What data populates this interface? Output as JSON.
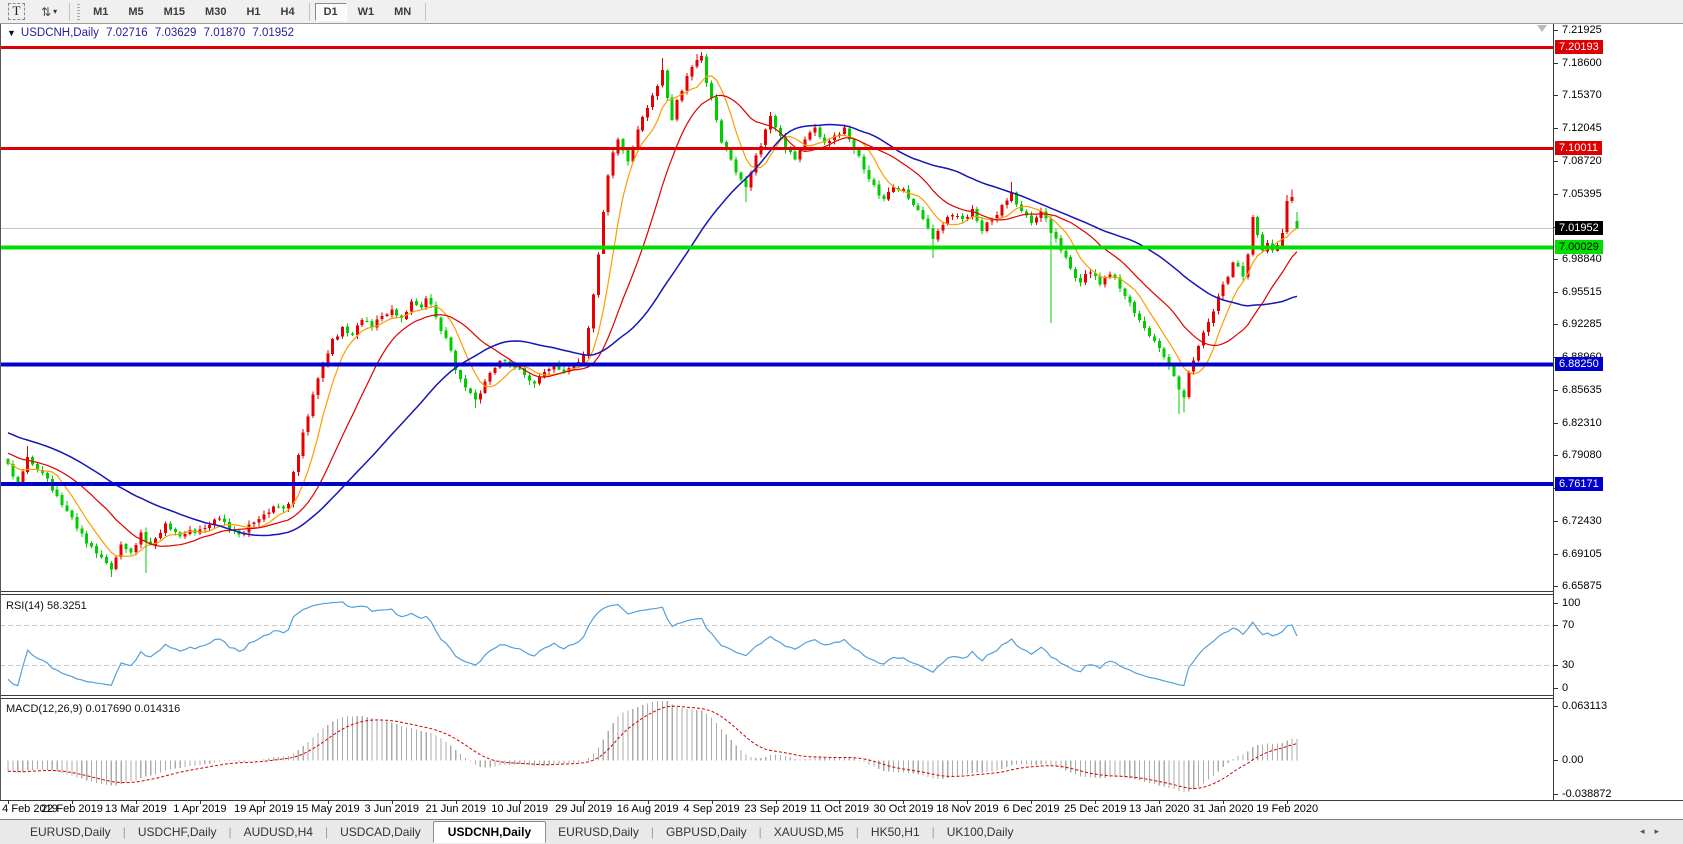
{
  "toolbar": {
    "text_tool_label": "T",
    "layout_tool_icon": "⇅",
    "caret_icon": "▼",
    "timeframes": [
      "M1",
      "M5",
      "M15",
      "M30",
      "H1",
      "H4",
      "D1",
      "W1",
      "MN"
    ],
    "active_timeframe": "D1"
  },
  "chart_header": {
    "collapse_icon": "▼",
    "symbol": "USDCNH,Daily",
    "open": "7.02716",
    "high": "7.03629",
    "low": "7.01870",
    "close": "7.01952"
  },
  "rsi_pane": {
    "label": "RSI(14) 58.3251",
    "ticks": [
      "100",
      "70",
      "30",
      "0"
    ],
    "tick_values": [
      100,
      70,
      30,
      0
    ]
  },
  "macd_pane": {
    "label": "MACD(12,26,9) 0.017690 0.014316",
    "ticks": [
      "0.063113",
      "0.00",
      "-0.038872"
    ],
    "tick_values": [
      0.063113,
      0.0,
      -0.038872
    ]
  },
  "price_axis": {
    "ticks": [
      "7.21925",
      "7.18600",
      "7.15370",
      "7.12045",
      "7.08720",
      "7.05395",
      "7.02070",
      "6.98840",
      "6.95515",
      "6.92285",
      "6.88960",
      "6.85635",
      "6.82310",
      "6.79080",
      "6.75755",
      "6.72430",
      "6.69105",
      "6.65875"
    ],
    "tick_values": [
      7.21925,
      7.186,
      7.1537,
      7.12045,
      7.0872,
      7.05395,
      7.0207,
      6.9884,
      6.95515,
      6.92285,
      6.8896,
      6.85635,
      6.8231,
      6.7908,
      6.75755,
      6.7243,
      6.69105,
      6.65875
    ],
    "badges": [
      {
        "text": "7.20193",
        "price": 7.20193,
        "bg": "#dd0000",
        "fg": "#ffffff"
      },
      {
        "text": "7.10011",
        "price": 7.10011,
        "bg": "#dd0000",
        "fg": "#ffffff"
      },
      {
        "text": "7.01952",
        "price": 7.01952,
        "bg": "#000000",
        "fg": "#ffffff"
      },
      {
        "text": "7.00029",
        "price": 7.00029,
        "bg": "#00dd00",
        "fg": "#000000"
      },
      {
        "text": "6.88250",
        "price": 6.8825,
        "bg": "#0000cd",
        "fg": "#ffffff"
      },
      {
        "text": "6.76171",
        "price": 6.76171,
        "bg": "#0000cd",
        "fg": "#ffffff"
      }
    ]
  },
  "time_axis": {
    "labels": [
      "4 Feb 2019",
      "22 Feb 2019",
      "13 Mar 2019",
      "1 Apr 2019",
      "19 Apr 2019",
      "15 May 2019",
      "3 Jun 2019",
      "21 Jun 2019",
      "10 Jul 2019",
      "29 Jul 2019",
      "16 Aug 2019",
      "4 Sep 2019",
      "23 Sep 2019",
      "11 Oct 2019",
      "30 Oct 2019",
      "18 Nov 2019",
      "6 Dec 2019",
      "25 Dec 2019",
      "13 Jan 2020",
      "31 Jan 2020",
      "19 Feb 2020"
    ]
  },
  "tabs": {
    "items": [
      "EURUSD,Daily",
      "USDCHF,Daily",
      "AUDUSD,H4",
      "USDCAD,Daily",
      "USDCNH,Daily",
      "EURUSD,Daily",
      "GBPUSD,Daily",
      "XAUUSD,M5",
      "HK50,H1",
      "UK100,Daily"
    ],
    "active_index": 4,
    "scroll_left_icon": "◂",
    "scroll_right_icon": "▸"
  },
  "chart_data": {
    "type": "candlestick",
    "symbol": "USDCNH",
    "timeframe": "Daily",
    "title": "USDCNH,Daily",
    "bull_color": "#e60000",
    "bear_color": "#00cc00",
    "current_price_line": {
      "price": 7.01952,
      "color": "#c4c4c4"
    },
    "levels": [
      {
        "price": 7.20193,
        "color": "#dd0000",
        "width": 3
      },
      {
        "price": 7.10011,
        "color": "#dd0000",
        "width": 3
      },
      {
        "price": 7.00029,
        "color": "#00dd00",
        "width": 4
      },
      {
        "price": 6.8825,
        "color": "#0000cd",
        "width": 4
      },
      {
        "price": 6.76171,
        "color": "#0000cd",
        "width": 4
      }
    ],
    "price_range": {
      "min": 6.6541,
      "max": 7.2255
    },
    "candles_count": 263,
    "last_candle": {
      "open": 7.02716,
      "high": 7.03629,
      "low": 7.0187,
      "close": 7.01952
    },
    "close_anchors": [
      [
        0,
        6.782
      ],
      [
        2,
        6.763
      ],
      [
        4,
        6.789
      ],
      [
        7,
        6.773
      ],
      [
        10,
        6.75
      ],
      [
        13,
        6.728
      ],
      [
        16,
        6.702
      ],
      [
        19,
        6.688
      ],
      [
        21,
        6.676
      ],
      [
        23,
        6.701
      ],
      [
        25,
        6.693
      ],
      [
        27,
        6.713
      ],
      [
        29,
        6.701
      ],
      [
        32,
        6.722
      ],
      [
        35,
        6.709
      ],
      [
        39,
        6.716
      ],
      [
        43,
        6.727
      ],
      [
        47,
        6.711
      ],
      [
        50,
        6.723
      ],
      [
        53,
        6.733
      ],
      [
        55,
        6.739
      ],
      [
        57,
        6.742
      ],
      [
        58,
        6.774
      ],
      [
        60,
        6.814
      ],
      [
        62,
        6.852
      ],
      [
        64,
        6.884
      ],
      [
        66,
        6.908
      ],
      [
        68,
        6.92
      ],
      [
        70,
        6.912
      ],
      [
        72,
        6.927
      ],
      [
        74,
        6.92
      ],
      [
        76,
        6.931
      ],
      [
        78,
        6.938
      ],
      [
        80,
        6.929
      ],
      [
        82,
        6.946
      ],
      [
        84,
        6.94
      ],
      [
        85,
        6.949
      ],
      [
        87,
        6.93
      ],
      [
        89,
        6.909
      ],
      [
        91,
        6.877
      ],
      [
        93,
        6.859
      ],
      [
        95,
        6.847
      ],
      [
        97,
        6.865
      ],
      [
        99,
        6.879
      ],
      [
        101,
        6.886
      ],
      [
        103,
        6.879
      ],
      [
        105,
        6.872
      ],
      [
        107,
        6.863
      ],
      [
        109,
        6.875
      ],
      [
        111,
        6.883
      ],
      [
        113,
        6.874
      ],
      [
        115,
        6.881
      ],
      [
        117,
        6.893
      ],
      [
        118,
        6.919
      ],
      [
        119,
        6.953
      ],
      [
        120,
        6.993
      ],
      [
        121,
        7.036
      ],
      [
        122,
        7.073
      ],
      [
        123,
        7.096
      ],
      [
        124,
        7.109
      ],
      [
        125,
        7.098
      ],
      [
        126,
        7.087
      ],
      [
        127,
        7.101
      ],
      [
        128,
        7.119
      ],
      [
        130,
        7.141
      ],
      [
        132,
        7.163
      ],
      [
        133,
        7.179
      ],
      [
        134,
        7.151
      ],
      [
        135,
        7.129
      ],
      [
        136,
        7.149
      ],
      [
        138,
        7.173
      ],
      [
        140,
        7.189
      ],
      [
        141,
        7.193
      ],
      [
        142,
        7.166
      ],
      [
        143,
        7.151
      ],
      [
        144,
        7.129
      ],
      [
        145,
        7.106
      ],
      [
        147,
        7.089
      ],
      [
        149,
        7.069
      ],
      [
        150,
        7.061
      ],
      [
        152,
        7.093
      ],
      [
        154,
        7.119
      ],
      [
        155,
        7.133
      ],
      [
        156,
        7.121
      ],
      [
        158,
        7.099
      ],
      [
        160,
        7.089
      ],
      [
        162,
        7.109
      ],
      [
        164,
        7.121
      ],
      [
        166,
        7.106
      ],
      [
        168,
        7.113
      ],
      [
        170,
        7.121
      ],
      [
        172,
        7.099
      ],
      [
        174,
        7.079
      ],
      [
        176,
        7.063
      ],
      [
        178,
        7.049
      ],
      [
        180,
        7.061
      ],
      [
        182,
        7.059
      ],
      [
        184,
        7.043
      ],
      [
        186,
        7.029
      ],
      [
        188,
        7.009
      ],
      [
        190,
        7.023
      ],
      [
        192,
        7.033
      ],
      [
        194,
        7.029
      ],
      [
        196,
        7.039
      ],
      [
        198,
        7.017
      ],
      [
        200,
        7.029
      ],
      [
        202,
        7.043
      ],
      [
        204,
        7.055
      ],
      [
        206,
        7.037
      ],
      [
        208,
        7.025
      ],
      [
        210,
        7.037
      ],
      [
        212,
        7.015
      ],
      [
        214,
        6.997
      ],
      [
        216,
        6.979
      ],
      [
        218,
        6.965
      ],
      [
        220,
        6.975
      ],
      [
        222,
        6.963
      ],
      [
        224,
        6.973
      ],
      [
        226,
        6.959
      ],
      [
        228,
        6.945
      ],
      [
        230,
        6.927
      ],
      [
        232,
        6.911
      ],
      [
        234,
        6.899
      ],
      [
        236,
        6.881
      ],
      [
        238,
        6.857
      ],
      [
        239,
        6.849
      ],
      [
        240,
        6.875
      ],
      [
        242,
        6.901
      ],
      [
        244,
        6.925
      ],
      [
        246,
        6.951
      ],
      [
        247,
        6.963
      ],
      [
        249,
        6.985
      ],
      [
        251,
        6.971
      ],
      [
        252,
        6.993
      ],
      [
        253,
        7.031
      ],
      [
        254,
        7.013
      ],
      [
        255,
        6.997
      ],
      [
        256,
        7.005
      ],
      [
        257,
        6.997
      ],
      [
        258,
        7.003
      ],
      [
        259,
        7.015
      ],
      [
        260,
        7.047
      ],
      [
        261,
        7.051
      ],
      [
        262,
        7.0195
      ]
    ],
    "wick_overrides": [
      {
        "i": 4,
        "high": 6.8
      },
      {
        "i": 21,
        "low": 6.668
      },
      {
        "i": 28,
        "low": 6.672
      },
      {
        "i": 95,
        "low": 6.8385
      },
      {
        "i": 121,
        "low": 6.999
      },
      {
        "i": 133,
        "high": 7.191
      },
      {
        "i": 140,
        "high": 7.1955
      },
      {
        "i": 141,
        "high": 7.1972
      },
      {
        "i": 150,
        "low": 7.046
      },
      {
        "i": 188,
        "low": 6.9895
      },
      {
        "i": 204,
        "high": 7.0665
      },
      {
        "i": 212,
        "low": 6.924
      },
      {
        "i": 238,
        "low": 6.8325
      },
      {
        "i": 239,
        "low": 6.834
      },
      {
        "i": 260,
        "high": 7.053
      },
      {
        "i": 261,
        "high": 7.0585
      }
    ],
    "moving_averages": [
      {
        "period": 7,
        "color": "#ff9c00",
        "width": 1.2
      },
      {
        "period": 18,
        "color": "#e00000",
        "width": 1.2
      },
      {
        "period": 40,
        "color": "#1515b8",
        "width": 1.5
      }
    ],
    "prehistory": {
      "start": 6.862,
      "end": 6.778,
      "days": 45
    },
    "noise_amp": 0.0035,
    "seed": 97,
    "rsi": {
      "period": 14,
      "current": 58.3251,
      "levels": [
        70,
        30
      ],
      "range": [
        0,
        100
      ],
      "color": "#54a0d8",
      "level_color": "#c9c9c9"
    },
    "macd": {
      "fast": 12,
      "slow": 26,
      "signal": 9,
      "current_main": 0.01769,
      "current_signal": 0.014316,
      "range": [
        -0.0445,
        0.0699
      ],
      "histogram_color": "#ababab",
      "signal_color": "#d40000"
    }
  }
}
